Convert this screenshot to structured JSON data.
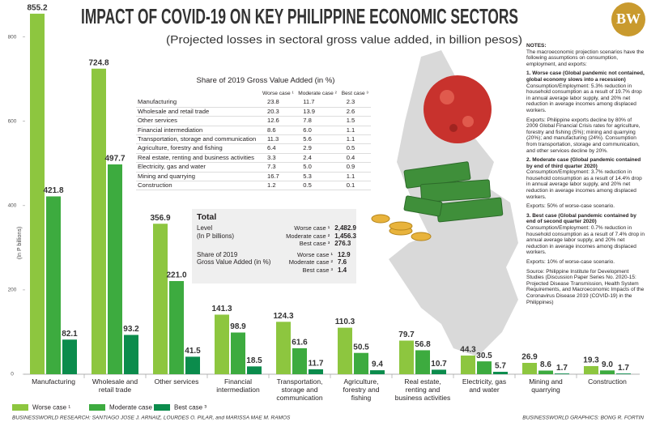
{
  "chart_data": {
    "type": "bar",
    "title": "IMPACT OF COVID-19 ON KEY PHILIPPINE ECONOMIC SECTORS",
    "subtitle": "(Projected losses in sectoral gross value added, in billion pesos)",
    "y_label": "(In P billions)",
    "categories": [
      "Manufacturing",
      "Wholesale and retail trade",
      "Other services",
      "Financial intermediation",
      "Transportation, storage and communication",
      "Agriculture, forestry and fishing",
      "Real estate, renting and business activities",
      "Electricity, gas and water",
      "Mining and quarrying",
      "Construction"
    ],
    "series": [
      {
        "name": "Worse case ¹",
        "color": "#8dc63f",
        "values": [
          855.2,
          724.8,
          356.9,
          141.3,
          124.3,
          110.3,
          79.7,
          44.3,
          26.9,
          19.3
        ],
        "value_labels": [
          "855.2",
          "724.8",
          "356.9",
          "141.3",
          "124.3",
          "110.3",
          "79.7",
          "44.3",
          "26.9",
          "19.3"
        ]
      },
      {
        "name": "Moderate case ²",
        "color": "#3dab3f",
        "values": [
          421.8,
          497.7,
          221.0,
          98.9,
          61.6,
          50.5,
          56.8,
          30.5,
          8.6,
          9.0
        ],
        "value_labels": [
          "421.8",
          "497.7",
          "221.0",
          "98.9",
          "61.6",
          "50.5",
          "56.8",
          "30.5",
          "8.6",
          "9.0"
        ]
      },
      {
        "name": "Best case ³",
        "color": "#0b8c4c",
        "values": [
          82.1,
          93.2,
          41.5,
          18.5,
          11.7,
          9.4,
          10.7,
          5.7,
          1.7,
          1.7
        ],
        "value_labels": [
          "82.1",
          "93.2",
          "41.5",
          "18.5",
          "11.7",
          "9.4",
          "10.7",
          "5.7",
          "1.7",
          "1.7"
        ]
      }
    ],
    "ylim": [
      0,
      880
    ],
    "yticks": [
      0,
      200,
      400,
      600,
      800
    ],
    "grid": false,
    "legend": "bottom-left"
  },
  "logo": "BW",
  "table": {
    "title": "Share of 2019 Gross Value Added (in %)",
    "columns": [
      "Worse case ¹",
      "Moderate case ²",
      "Best case ³"
    ],
    "rows": [
      [
        "Manufacturing",
        "23.8",
        "11.7",
        "2.3"
      ],
      [
        "Wholesale and retail trade",
        "20.3",
        "13.9",
        "2.6"
      ],
      [
        "Other services",
        "12.6",
        "7.8",
        "1.5"
      ],
      [
        "Financial intermediation",
        "8.6",
        "6.0",
        "1.1"
      ],
      [
        "Transportation, storage and communication",
        "11.3",
        "5.6",
        "1.1"
      ],
      [
        "Agriculture, forestry and fishing",
        "6.4",
        "2.9",
        "0.5"
      ],
      [
        "Real estate, renting and business activities",
        "3.3",
        "2.4",
        "0.4"
      ],
      [
        "Electricity, gas and water",
        "7.3",
        "5.0",
        "0.9"
      ],
      [
        "Mining and quarrying",
        "16.7",
        "5.3",
        "1.1"
      ],
      [
        "Construction",
        "1.2",
        "0.5",
        "0.1"
      ]
    ]
  },
  "total": {
    "title": "Total",
    "groups": [
      {
        "label": [
          "Level",
          "(In P billions)"
        ],
        "rows": [
          [
            "Worse case ¹",
            "2,482.9"
          ],
          [
            "Moderate case ²",
            "1,456.3"
          ],
          [
            "Best case ³",
            "276.3"
          ]
        ]
      },
      {
        "label": [
          "Share of 2019",
          "Gross Value Added (in %)"
        ],
        "rows": [
          [
            "Worse case ¹",
            "12.9"
          ],
          [
            "Moderate case ²",
            "7.6"
          ],
          [
            "Best case ³",
            "1.4"
          ]
        ]
      }
    ]
  },
  "notes": {
    "heading": "NOTES:",
    "intro": "The macroeconomic projection scenarios have the following assumptions on consumption, employment, and exports:",
    "sections": [
      {
        "title": "1. Worse case (Global pandemic not contained, global economy slows into a recession)",
        "paragraphs": [
          "Consumption/Employment: 5.3% reduction in household consumption as a result of 19.7% drop in annual average labor supply, and 20% net reduction in average incomes among displaced workers.",
          "Exports: Philippine exports decline by 80% of 2009 Global Financial Crisis rates for agriculture, forestry and fishing (5%); mining and quarrying (20%); and manufacturing (24%). Consumption from transportation, storage and communication, and other services decline by 20%."
        ]
      },
      {
        "title": "2. Moderate case (Global pandemic contained by end of third quarter 2020)",
        "paragraphs": [
          "Consumption/Employment: 3.7% reduction in household consumption as a result of 14.4% drop in annual average labor supply, and 20% net reduction in average incomes among displaced workers.",
          "Exports: 50% of worse-case scenario."
        ]
      },
      {
        "title": "3. Best case (Global pandemic contained by end of second quarter 2020)",
        "paragraphs": [
          "Consumption/Employment: 0.7% reduction in household consumption as a result of 7.4% drop in annual average labor supply, and 20% net reduction in average incomes among displaced workers.",
          "Exports: 10% of worse-case scenario."
        ]
      }
    ],
    "source": "Source: Philippine Institute for Development Studies (Discussion Paper Series No. 2020-15: Projected Disease Transmission, Health System Requirements, and Macroeconomic Impacts of the Coronavirus Disease 2019 (COVID-19) in the Philippines)"
  },
  "credits": {
    "research": "BUSINESSWORLD RESEARCH: SANTIAGO JOSE J. ARNAIZ, LOURDES O. PILAR, and MARISSA MAE M. RAMOS",
    "graphics": "BUSINESSWORLD GRAPHICS: BONG R. FORTIN"
  }
}
